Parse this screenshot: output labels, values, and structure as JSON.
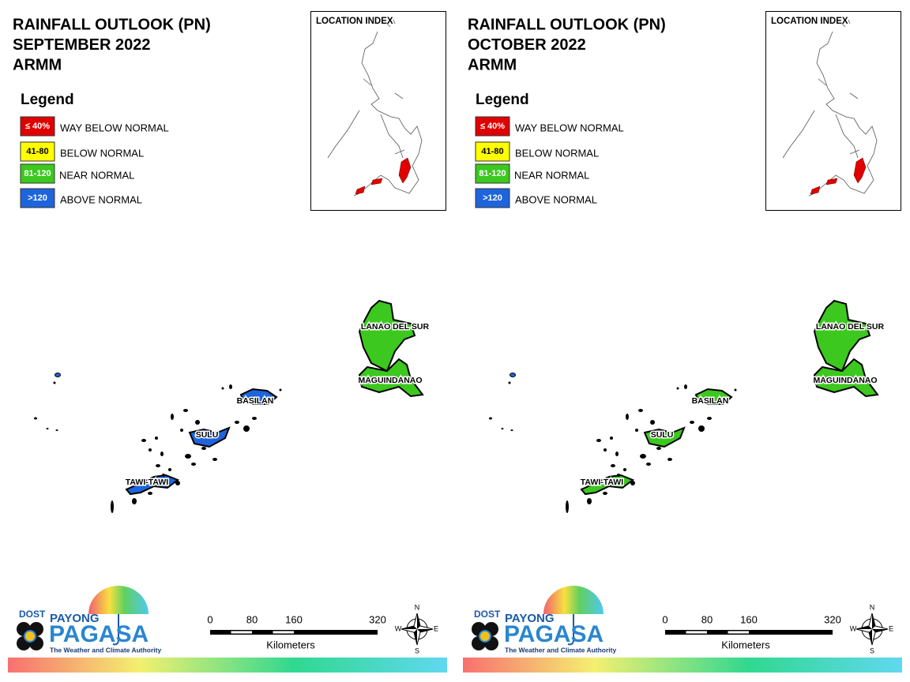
{
  "panels": [
    {
      "title": [
        "RAINFALL OUTLOOK (PN)",
        "SEPTEMBER 2022",
        "ARMM"
      ],
      "legend": {
        "title": "Legend",
        "items": [
          {
            "key": "≤ 40%",
            "label": "WAY BELOW NORMAL",
            "color": "#e00000"
          },
          {
            "key": "41-80",
            "label": "BELOW NORMAL",
            "color": "#ffff00"
          },
          {
            "key": "81-120",
            "label": "NEAR NORMAL",
            "color": "#3cc81e"
          },
          {
            "key": ">120",
            "label": "ABOVE NORMAL",
            "color": "#1e64dc"
          }
        ]
      },
      "location_index": "LOCATION INDEX",
      "regions": [
        {
          "name": "LANAO DEL SUR",
          "color": "#3cc81e"
        },
        {
          "name": "MAGUINDANAO",
          "color": "#3cc81e"
        },
        {
          "name": "BASILAN",
          "color": "#1e64dc"
        },
        {
          "name": "SULU",
          "color": "#1e64dc"
        },
        {
          "name": "TAWI-TAWI",
          "color": "#1e64dc"
        }
      ],
      "scale": {
        "ticks": [
          0,
          80,
          160,
          320
        ],
        "unit": "Kilometers"
      },
      "compass": [
        "N",
        "E",
        "S",
        "W"
      ],
      "logo": {
        "dost": "DOST",
        "payong": "PAYONG",
        "pagasa": "PAGASA",
        "tagline": "The Weather and Climate Authority"
      }
    },
    {
      "title": [
        "RAINFALL OUTLOOK (PN)",
        "OCTOBER 2022",
        "ARMM"
      ],
      "legend": {
        "title": "Legend",
        "items": [
          {
            "key": "≤ 40%",
            "label": "WAY BELOW NORMAL",
            "color": "#e00000"
          },
          {
            "key": "41-80",
            "label": "BELOW NORMAL",
            "color": "#ffff00"
          },
          {
            "key": "81-120",
            "label": "NEAR NORMAL",
            "color": "#3cc81e"
          },
          {
            "key": ">120",
            "label": "ABOVE NORMAL",
            "color": "#1e64dc"
          }
        ]
      },
      "location_index": "LOCATION INDEX",
      "regions": [
        {
          "name": "LANAO DEL SUR",
          "color": "#3cc81e"
        },
        {
          "name": "MAGUINDANAO",
          "color": "#3cc81e"
        },
        {
          "name": "BASILAN",
          "color": "#3cc81e"
        },
        {
          "name": "SULU",
          "color": "#3cc81e"
        },
        {
          "name": "TAWI-TAWI",
          "color": "#3cc81e"
        }
      ],
      "scale": {
        "ticks": [
          0,
          80,
          160,
          320
        ],
        "unit": "Kilometers"
      },
      "compass": [
        "N",
        "E",
        "S",
        "W"
      ],
      "logo": {
        "dost": "DOST",
        "payong": "PAYONG",
        "pagasa": "PAGASA",
        "tagline": "The Weather and Climate Authority"
      }
    }
  ]
}
